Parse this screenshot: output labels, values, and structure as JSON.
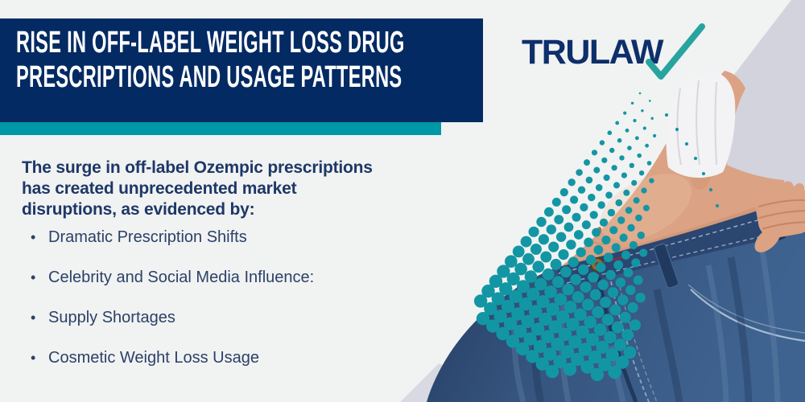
{
  "header": {
    "title_line1": "RISE IN OFF-LABEL WEIGHT LOSS DRUG",
    "title_line2": "PRESCRIPTIONS AND USAGE PATTERNS"
  },
  "logo": {
    "text": "TRULAW",
    "checkmark_icon": "teal-checkmark"
  },
  "intro": {
    "lines": [
      "The surge in off-label Ozempic prescriptions",
      "has created unprecedented market",
      "disruptions, as evidenced by:"
    ]
  },
  "list": {
    "bullet_char": "•",
    "items": [
      {
        "label": "Dramatic Prescription Shifts"
      },
      {
        "label": "Celebrity and Social Media Influence:"
      },
      {
        "label": "Supply Shortages"
      },
      {
        "label": "Cosmetic Weight Loss Usage"
      }
    ]
  },
  "illustration": {
    "subject": "person holding out waistband of oversized jeans after weight loss",
    "pattern_icon": "teal-halftone-dot-triangle"
  },
  "colors": {
    "navy": "#042a63",
    "teal": "#0098a7",
    "dot_teal": "#1396a4",
    "check_teal": "#28a49f",
    "text_navy": "#1d3867",
    "bullet_navy": "#2b4168",
    "lavender": "#d2d3dc",
    "page_bg": "#f1f2f2",
    "logo_navy": "#0d2f6b"
  }
}
